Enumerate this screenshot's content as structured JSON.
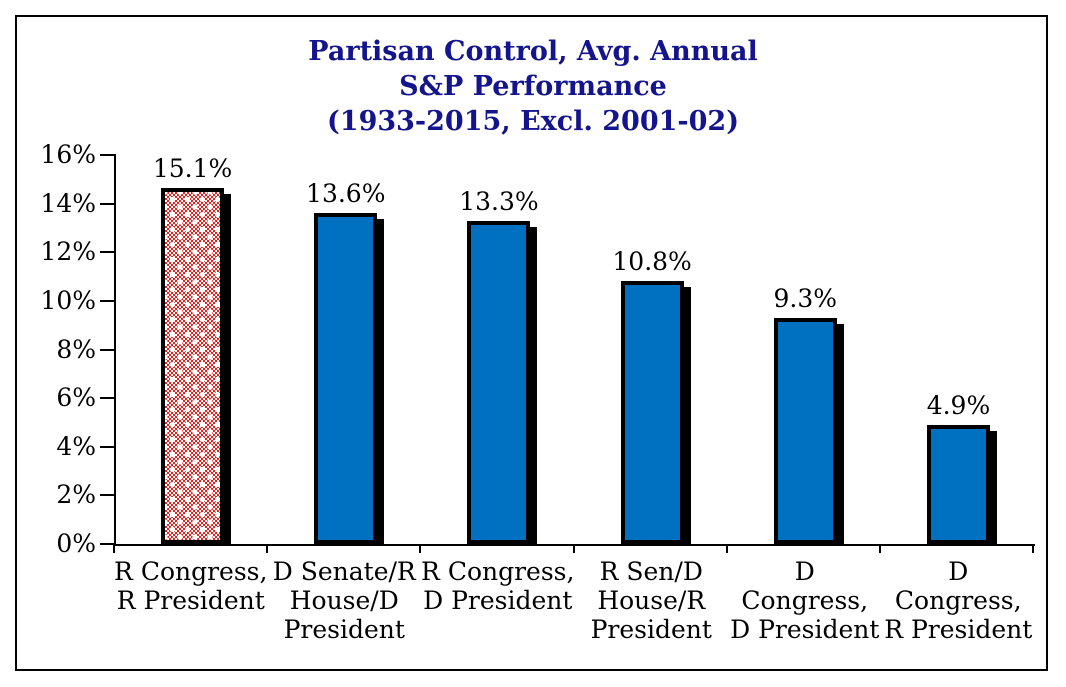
{
  "chart_data": {
    "type": "bar",
    "title": "Partisan Control, Avg. Annual S&P Performance (1933-2015, Excl. 2001-02)",
    "title_lines": [
      "Partisan Control, Avg. Annual",
      "S&P Performance",
      "(1933-2015, Excl. 2001-02)"
    ],
    "categories": [
      "R Congress, R President",
      "D Senate/R House/D President",
      "R Congress, D President",
      "R Sen/D House/R President",
      "D Congress, D President",
      "D Congress, R President"
    ],
    "category_lines": [
      [
        "R Congress,",
        "R President"
      ],
      [
        "D Senate/R",
        "House/D",
        "President"
      ],
      [
        "R Congress,",
        "D President"
      ],
      [
        "R Sen/D",
        "House/R",
        "President"
      ],
      [
        "D Congress,",
        "D President"
      ],
      [
        "D Congress,",
        "R President"
      ]
    ],
    "values": [
      15.1,
      13.6,
      13.3,
      10.8,
      9.3,
      4.9
    ],
    "data_labels": [
      "15.1%",
      "13.6%",
      "13.3%",
      "10.8%",
      "9.3%",
      "4.9%"
    ],
    "highlight_index": 0,
    "xlabel": "",
    "ylabel": "",
    "ylim": [
      0,
      16
    ],
    "ytick_step": 2,
    "yticks": [
      0,
      2,
      4,
      6,
      8,
      10,
      12,
      14,
      16
    ],
    "ytick_labels": [
      "0%",
      "2%",
      "4%",
      "6%",
      "8%",
      "10%",
      "12%",
      "14%",
      "16%"
    ],
    "grid": false,
    "legend": "none",
    "colors": {
      "bar_fill": "#0070C0",
      "highlight_fill_pattern": "#E62320",
      "bar_border": "#000000",
      "bar_shadow": "#000000",
      "title_text": "#14148C",
      "axis_and_labels": "#000000",
      "background": "#FFFFFF"
    }
  }
}
